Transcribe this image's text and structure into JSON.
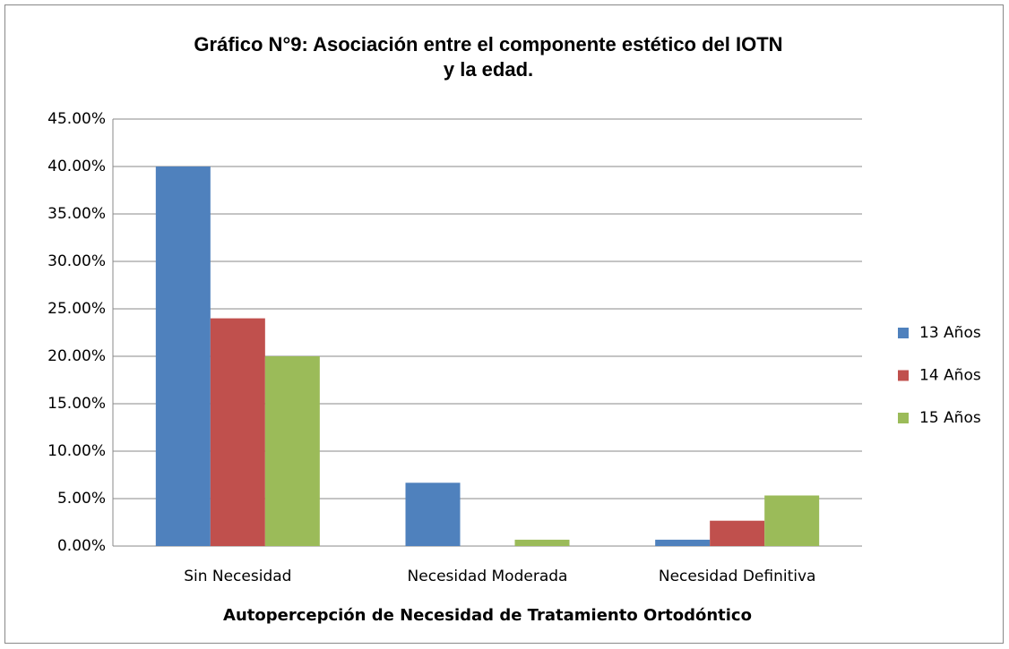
{
  "chart_data": {
    "type": "bar",
    "title": [
      "Gráfico N°9: Asociación entre el componente estético del IOTN",
      "y la edad."
    ],
    "x_label": "Autopercepción de Necesidad de Tratamiento Ortodóntico",
    "categories": [
      "Sin Necesidad",
      "Necesidad Moderada",
      "Necesidad Definitiva"
    ],
    "series": [
      {
        "name": "13 Años",
        "color": "#4f81bd",
        "values": [
          40,
          6.67,
          0.67
        ]
      },
      {
        "name": "14 Años",
        "color": "#c0504d",
        "values": [
          24,
          0,
          2.67
        ]
      },
      {
        "name": "15 Años",
        "color": "#9bbb59",
        "values": [
          20,
          0.67,
          5.33
        ]
      }
    ],
    "ylim": [
      0,
      45
    ],
    "yticks": [
      {
        "value": 0,
        "label": "0.00%"
      },
      {
        "value": 5,
        "label": "5.00%"
      },
      {
        "value": 10,
        "label": "10.00%"
      },
      {
        "value": 15,
        "label": "15.00%"
      },
      {
        "value": 20,
        "label": "20.00%"
      },
      {
        "value": 25,
        "label": "25.00%"
      },
      {
        "value": 30,
        "label": "30.00%"
      },
      {
        "value": 35,
        "label": "35.00%"
      },
      {
        "value": 40,
        "label": "40.00%"
      },
      {
        "value": 45,
        "label": "45.00%"
      }
    ],
    "grid": true,
    "legend": "right"
  }
}
